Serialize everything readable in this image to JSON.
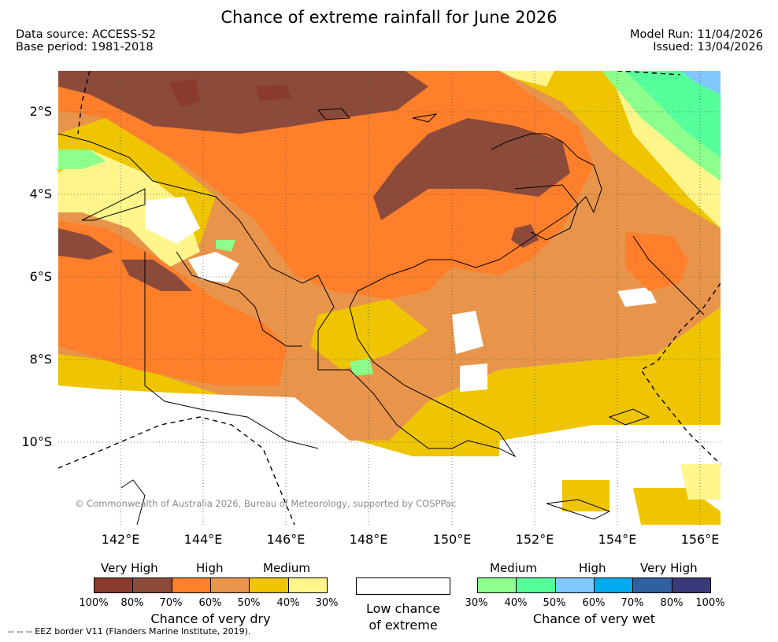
{
  "title": "Chance of extreme rainfall for June 2026",
  "meta": {
    "data_source": "Data source: ACCESS-S2",
    "base_period": "Base period: 1981-2018",
    "model_run": "Model Run: 11/04/2026",
    "issued": "Issued: 13/04/2026"
  },
  "map": {
    "lat_labels": [
      "2°S",
      "4°S",
      "6°S",
      "8°S",
      "10°S"
    ],
    "lon_labels": [
      "142°E",
      "144°E",
      "146°E",
      "148°E",
      "150°E",
      "152°E",
      "154°E",
      "156°E"
    ],
    "copyright": "© Commonwealth of Australia 2026, Bureau of Meteorology, supported by COSPPac"
  },
  "legend": {
    "dry": {
      "levels": [
        "Very High",
        "High",
        "Medium"
      ],
      "colors": [
        "#8b3a2e",
        "#8b4a3a",
        "#ff7f2a",
        "#e8944a",
        "#eec500",
        "#fff58a"
      ],
      "ticks": [
        "100%",
        "80%",
        "70%",
        "60%",
        "50%",
        "40%",
        "30%"
      ],
      "caption": "Chance of very dry"
    },
    "low": {
      "caption_line1": "Low chance",
      "caption_line2": "of extreme"
    },
    "wet": {
      "levels": [
        "Medium",
        "High",
        "Very High"
      ],
      "colors": [
        "#8cff8c",
        "#55ff9a",
        "#80c8ff",
        "#00aaee",
        "#3060a0",
        "#3a3a7a"
      ],
      "ticks": [
        "30%",
        "40%",
        "50%",
        "60%",
        "70%",
        "80%",
        "100%"
      ],
      "caption": "Chance of very wet"
    },
    "eez_note": "-- -- -- EEZ border V11 (Flanders Marine Institute, 2019)."
  }
}
